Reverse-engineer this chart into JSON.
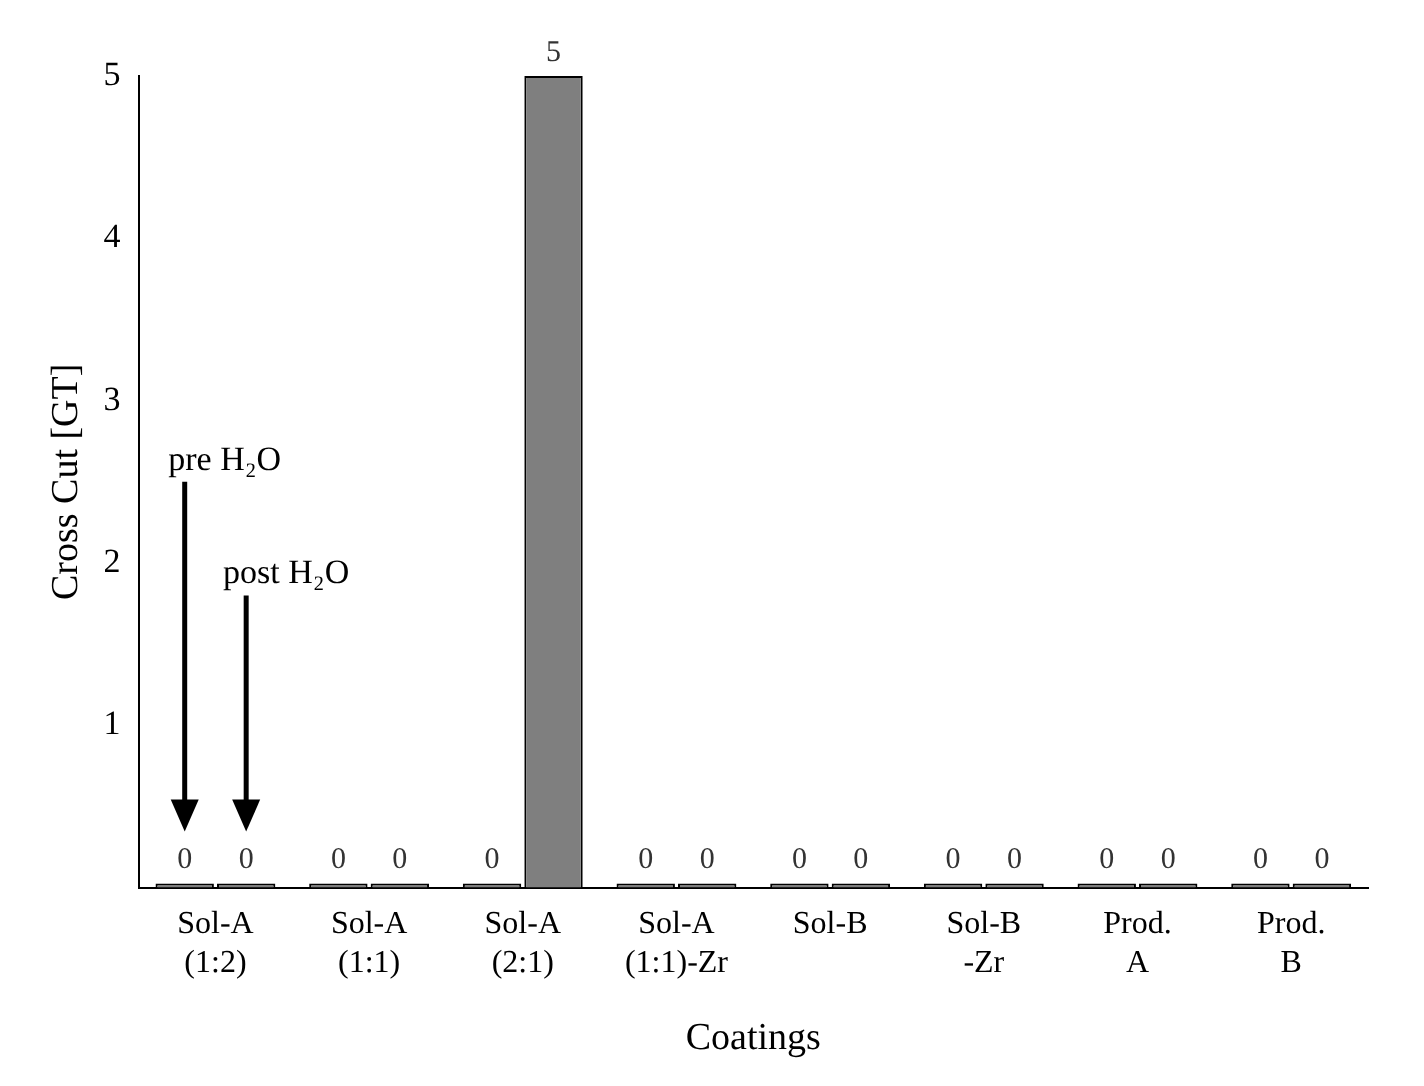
{
  "chart_data": {
    "type": "bar",
    "xlabel": "Coatings",
    "ylabel": "Cross Cut [GT]",
    "categories": [
      "Sol-A\n(1:2)",
      "Sol-A\n(1:1)",
      "Sol-A\n(2:1)",
      "Sol-A\n(1:1)-Zr",
      "Sol-B",
      "Sol-B\n-Zr",
      "Prod.\nA",
      "Prod.\nB"
    ],
    "series": [
      {
        "color": "#7f7f7f",
        "values": [
          0,
          0,
          0,
          0,
          0,
          0,
          0,
          0
        ]
      },
      {
        "color": "#7f7f7f",
        "values": [
          0,
          0,
          5,
          0,
          0,
          0,
          0,
          0
        ]
      }
    ],
    "annotations": [
      "pre H₂O",
      "post H₂O"
    ],
    "ylim": [
      0,
      5
    ],
    "yticks": [
      1,
      2,
      3,
      4,
      5
    ],
    "grid": false,
    "legend": false,
    "data_labels": true
  }
}
